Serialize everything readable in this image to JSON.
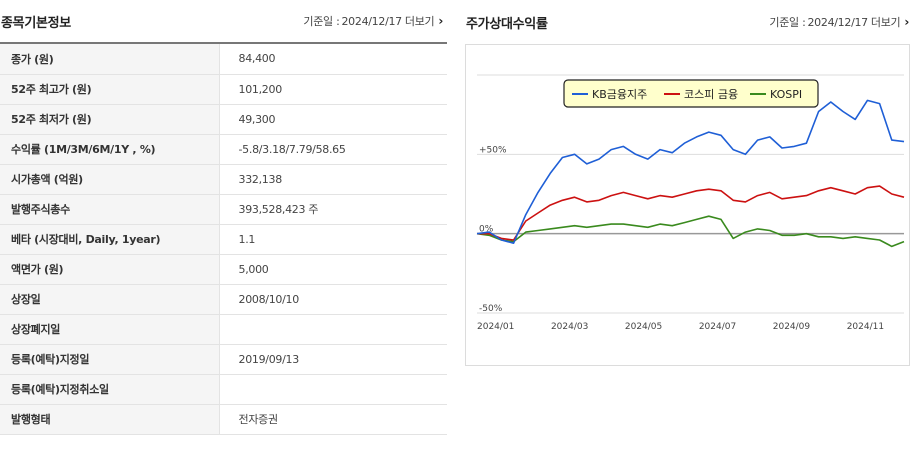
{
  "basic_info": {
    "title": "종목기본정보",
    "date_label": "기준일 :",
    "date": "2024/12/17",
    "more": "더보기",
    "rows": [
      {
        "label": "종가 (원)",
        "value": "84,400"
      },
      {
        "label": "52주 최고가 (원)",
        "value": "101,200"
      },
      {
        "label": "52주 최저가 (원)",
        "value": "49,300"
      },
      {
        "label": "수익률 (1M/3M/6M/1Y , %)",
        "value": "-5.8/3.18/7.79/58.65"
      },
      {
        "label": "시가총액 (억원)",
        "value": "332,138"
      },
      {
        "label": "발행주식총수",
        "value": "393,528,423 주"
      },
      {
        "label": "베타 (시장대비, Daily, 1year)",
        "value": "1.1"
      },
      {
        "label": "액면가 (원)",
        "value": "5,000"
      },
      {
        "label": "상장일",
        "value": "2008/10/10"
      },
      {
        "label": "상장폐지일",
        "value": ""
      },
      {
        "label": "등록(예탁)지정일",
        "value": "2019/09/13"
      },
      {
        "label": "등록(예탁)지정취소일",
        "value": ""
      },
      {
        "label": "발행형태",
        "value": "전자증권"
      }
    ]
  },
  "relative_return": {
    "title": "주가상대수익률",
    "date_label": "기준일 :",
    "date": "2024/12/17",
    "more": "더보기"
  },
  "chart_data": {
    "type": "line",
    "x": [
      "2024/01",
      "2024/01",
      "2024/01",
      "2024/02",
      "2024/02",
      "2024/02",
      "2024/03",
      "2024/03",
      "2024/03",
      "2024/04",
      "2024/04",
      "2024/04",
      "2024/05",
      "2024/05",
      "2024/05",
      "2024/06",
      "2024/06",
      "2024/06",
      "2024/07",
      "2024/07",
      "2024/07",
      "2024/08",
      "2024/08",
      "2024/08",
      "2024/09",
      "2024/09",
      "2024/09",
      "2024/10",
      "2024/10",
      "2024/10",
      "2024/11",
      "2024/11",
      "2024/11",
      "2024/12",
      "2024/12",
      "2024/12"
    ],
    "x_ticks": [
      "2024/01",
      "2024/03",
      "2024/05",
      "2024/07",
      "2024/09",
      "2024/11"
    ],
    "y_ticks": [
      "+50%",
      "0%",
      "-50%"
    ],
    "ylim": [
      -50,
      100
    ],
    "grid": true,
    "legend_position": "top",
    "series": [
      {
        "name": "KB금융지주",
        "color": "#1f5fd6",
        "values": [
          0,
          1,
          -4,
          -6,
          12,
          26,
          38,
          48,
          50,
          44,
          47,
          53,
          55,
          50,
          47,
          53,
          51,
          57,
          61,
          64,
          62,
          53,
          50,
          59,
          61,
          54,
          55,
          57,
          77,
          83,
          77,
          72,
          84,
          82,
          59,
          58
        ]
      },
      {
        "name": "코스피 금융",
        "color": "#cc1111",
        "values": [
          0,
          0,
          -3,
          -4,
          8,
          13,
          18,
          21,
          23,
          20,
          21,
          24,
          26,
          24,
          22,
          24,
          23,
          25,
          27,
          28,
          27,
          21,
          20,
          24,
          26,
          22,
          23,
          24,
          27,
          29,
          27,
          25,
          29,
          30,
          25,
          23
        ]
      },
      {
        "name": "KOSPI",
        "color": "#3a8a1e",
        "values": [
          0,
          -1,
          -4,
          -5,
          1,
          2,
          3,
          4,
          5,
          4,
          5,
          6,
          6,
          5,
          4,
          6,
          5,
          7,
          9,
          11,
          9,
          -3,
          1,
          3,
          2,
          -1,
          -1,
          0,
          -2,
          -2,
          -3,
          -2,
          -3,
          -4,
          -8,
          -5
        ]
      }
    ]
  }
}
